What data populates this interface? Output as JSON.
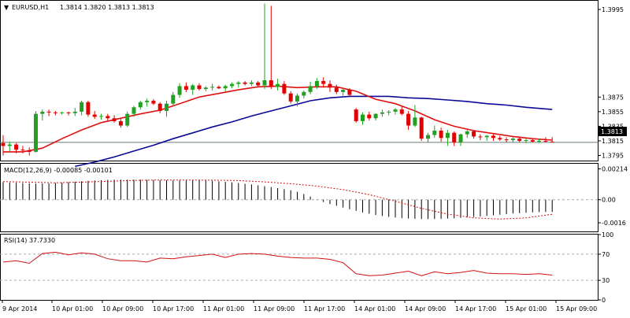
{
  "symbol_label": "EURUSD,H1",
  "ohlc_header": "1.3814 1.3820 1.3813 1.3813",
  "price_badge": "1.3813",
  "macd_label": "MACD(12,26,9) -0.00085 -0.00101",
  "rsi_label": "RSI(14) 37.7330",
  "colors": {
    "bull": "#22a022",
    "bear": "#e00000",
    "fast_ma": "#e01010",
    "slow_ma": "#0a0a96",
    "signal": "#d01010",
    "rsi": "#d01010",
    "grid_dash": "#aaaaaa",
    "current_price_line": "#6a7a70",
    "frame": "#000000"
  },
  "chart_data": [
    {
      "type": "candlestick",
      "symbol": "EURUSD",
      "timeframe": "H1",
      "y_ticks": [
        "1.3995",
        "1.3875",
        "1.3855",
        "1.3835",
        "1.3815",
        "1.3795"
      ],
      "ylim": [
        1.3788,
        1.4008
      ],
      "current_price": 1.3813,
      "x_tick_labels": [
        "9 Apr 2014",
        "10 Apr 01:00",
        "10 Apr 09:00",
        "10 Apr 17:00",
        "11 Apr 01:00",
        "11 Apr 09:00",
        "11 Apr 17:00",
        "14 Apr 01:00",
        "14 Apr 09:00",
        "14 Apr 17:00",
        "15 Apr 01:00",
        "15 Apr 09:00"
      ],
      "candles": [
        [
          1.3812,
          1.3823,
          1.3795,
          1.3808
        ],
        [
          1.3808,
          1.3814,
          1.3801,
          1.381
        ],
        [
          1.381,
          1.3812,
          1.3798,
          1.3803
        ],
        [
          1.3803,
          1.3808,
          1.3798,
          1.3802
        ],
        [
          1.3802,
          1.3806,
          1.3795,
          1.38
        ],
        [
          1.38,
          1.3856,
          1.3799,
          1.3852
        ],
        [
          1.3852,
          1.3858,
          1.3843,
          1.3855
        ],
        [
          1.3855,
          1.3858,
          1.3849,
          1.3854
        ],
        [
          1.3854,
          1.3856,
          1.385,
          1.3853
        ],
        [
          1.3853,
          1.3855,
          1.3851,
          1.3854
        ],
        [
          1.3854,
          1.3855,
          1.385,
          1.3853
        ],
        [
          1.3853,
          1.386,
          1.3849,
          1.3855
        ],
        [
          1.3855,
          1.387,
          1.385,
          1.3868
        ],
        [
          1.3868,
          1.387,
          1.3848,
          1.3851
        ],
        [
          1.3851,
          1.3856,
          1.3845,
          1.3848
        ],
        [
          1.3848,
          1.3852,
          1.3844,
          1.3849
        ],
        [
          1.3849,
          1.3852,
          1.3843,
          1.3846
        ],
        [
          1.3846,
          1.385,
          1.384,
          1.3842
        ],
        [
          1.3842,
          1.3845,
          1.3833,
          1.3836
        ],
        [
          1.3836,
          1.3855,
          1.3834,
          1.3852
        ],
        [
          1.3852,
          1.3863,
          1.3848,
          1.3861
        ],
        [
          1.3861,
          1.387,
          1.3858,
          1.3868
        ],
        [
          1.3868,
          1.3873,
          1.3862,
          1.387
        ],
        [
          1.387,
          1.3872,
          1.3864,
          1.3866
        ],
        [
          1.3866,
          1.3868,
          1.3853,
          1.3856
        ],
        [
          1.3856,
          1.387,
          1.3848,
          1.3866
        ],
        [
          1.3866,
          1.3882,
          1.3862,
          1.3878
        ],
        [
          1.3878,
          1.3894,
          1.3874,
          1.389
        ],
        [
          1.389,
          1.3895,
          1.3882,
          1.3885
        ],
        [
          1.3885,
          1.3893,
          1.3878,
          1.3891
        ],
        [
          1.3891,
          1.3894,
          1.3884,
          1.3886
        ],
        [
          1.3886,
          1.389,
          1.3883,
          1.3888
        ],
        [
          1.3888,
          1.3893,
          1.3884,
          1.3889
        ],
        [
          1.3889,
          1.3891,
          1.3886,
          1.3887
        ],
        [
          1.3887,
          1.3892,
          1.3883,
          1.389
        ],
        [
          1.389,
          1.3895,
          1.3887,
          1.3893
        ],
        [
          1.3893,
          1.3897,
          1.3888,
          1.3895
        ],
        [
          1.3895,
          1.3897,
          1.3891,
          1.3893
        ],
        [
          1.3893,
          1.3898,
          1.389,
          1.3895
        ],
        [
          1.3895,
          1.3897,
          1.3889,
          1.3891
        ],
        [
          1.3891,
          1.4003,
          1.3886,
          1.3898
        ],
        [
          1.3898,
          1.4,
          1.3886,
          1.3889
        ],
        [
          1.3889,
          1.39,
          1.3884,
          1.3893
        ],
        [
          1.3893,
          1.3897,
          1.3878,
          1.388
        ],
        [
          1.388,
          1.3883,
          1.3866,
          1.3869
        ],
        [
          1.3869,
          1.388,
          1.3862,
          1.3877
        ],
        [
          1.3877,
          1.3884,
          1.3873,
          1.3882
        ],
        [
          1.3882,
          1.3896,
          1.3879,
          1.389
        ],
        [
          1.389,
          1.3901,
          1.3886,
          1.3897
        ],
        [
          1.3897,
          1.3902,
          1.3888,
          1.3893
        ],
        [
          1.3893,
          1.3898,
          1.3882,
          1.3888
        ],
        [
          1.3888,
          1.3892,
          1.3879,
          1.3882
        ],
        [
          1.3882,
          1.3888,
          1.3877,
          1.3885
        ],
        [
          1.3885,
          1.3887,
          1.3876,
          1.3878
        ],
        [
          1.3858,
          1.386,
          1.384,
          1.3842
        ],
        [
          1.3842,
          1.3854,
          1.3837,
          1.3851
        ],
        [
          1.3851,
          1.3855,
          1.3843,
          1.3846
        ],
        [
          1.3846,
          1.3853,
          1.3843,
          1.3852
        ],
        [
          1.3852,
          1.3858,
          1.3848,
          1.3854
        ],
        [
          1.3854,
          1.3857,
          1.385,
          1.3855
        ],
        [
          1.3855,
          1.386,
          1.3851,
          1.3858
        ],
        [
          1.3858,
          1.3862,
          1.385,
          1.3852
        ],
        [
          1.3852,
          1.3856,
          1.383,
          1.3836
        ],
        [
          1.3836,
          1.3864,
          1.3834,
          1.3847
        ],
        [
          1.3847,
          1.3848,
          1.3815,
          1.3818
        ],
        [
          1.3818,
          1.3826,
          1.3813,
          1.3823
        ],
        [
          1.3823,
          1.3836,
          1.3819,
          1.3829
        ],
        [
          1.3829,
          1.3833,
          1.3814,
          1.3819
        ],
        [
          1.3819,
          1.383,
          1.3808,
          1.3826
        ],
        [
          1.3826,
          1.3828,
          1.3808,
          1.3813
        ],
        [
          1.3813,
          1.3825,
          1.3808,
          1.3824
        ],
        [
          1.3824,
          1.383,
          1.3819,
          1.3828
        ],
        [
          1.3828,
          1.383,
          1.3818,
          1.3821
        ],
        [
          1.3821,
          1.3824,
          1.3816,
          1.382
        ],
        [
          1.382,
          1.3823,
          1.3815,
          1.3822
        ],
        [
          1.3822,
          1.3824,
          1.3815,
          1.3819
        ],
        [
          1.3819,
          1.3822,
          1.3815,
          1.3817
        ],
        [
          1.3817,
          1.382,
          1.3813,
          1.3816
        ],
        [
          1.3816,
          1.382,
          1.3813,
          1.3818
        ],
        [
          1.3818,
          1.382,
          1.3813,
          1.3815
        ],
        [
          1.3815,
          1.3818,
          1.3812,
          1.3816
        ],
        [
          1.3816,
          1.3818,
          1.3813,
          1.3814
        ],
        [
          1.3814,
          1.3818,
          1.3812,
          1.3815
        ],
        [
          1.3815,
          1.382,
          1.3813,
          1.3814
        ],
        [
          1.3814,
          1.382,
          1.3813,
          1.3813
        ]
      ],
      "fast_ma": [
        [
          0,
          1.38
        ],
        [
          3,
          1.38
        ],
        [
          6,
          1.3805
        ],
        [
          9,
          1.3818
        ],
        [
          12,
          1.383
        ],
        [
          15,
          1.384
        ],
        [
          18,
          1.3846
        ],
        [
          21,
          1.3852
        ],
        [
          24,
          1.3857
        ],
        [
          27,
          1.3866
        ],
        [
          30,
          1.3875
        ],
        [
          33,
          1.388
        ],
        [
          36,
          1.3885
        ],
        [
          39,
          1.3889
        ],
        [
          42,
          1.389
        ],
        [
          45,
          1.3888
        ],
        [
          48,
          1.3889
        ],
        [
          51,
          1.3889
        ],
        [
          54,
          1.3883
        ],
        [
          57,
          1.3872
        ],
        [
          60,
          1.3866
        ],
        [
          63,
          1.3856
        ],
        [
          66,
          1.3844
        ],
        [
          69,
          1.3835
        ],
        [
          72,
          1.3829
        ],
        [
          75,
          1.3825
        ],
        [
          78,
          1.3821
        ],
        [
          81,
          1.3818
        ],
        [
          84,
          1.3816
        ]
      ],
      "slow_ma": [
        [
          11,
          1.378
        ],
        [
          14,
          1.3786
        ],
        [
          17,
          1.3793
        ],
        [
          20,
          1.3801
        ],
        [
          23,
          1.3809
        ],
        [
          26,
          1.3818
        ],
        [
          29,
          1.3826
        ],
        [
          32,
          1.3834
        ],
        [
          35,
          1.3841
        ],
        [
          38,
          1.3849
        ],
        [
          41,
          1.3856
        ],
        [
          44,
          1.3863
        ],
        [
          47,
          1.387
        ],
        [
          50,
          1.3874
        ],
        [
          53,
          1.3876
        ],
        [
          56,
          1.3876
        ],
        [
          59,
          1.3876
        ],
        [
          62,
          1.3874
        ],
        [
          65,
          1.3873
        ],
        [
          68,
          1.3871
        ],
        [
          71,
          1.3869
        ],
        [
          74,
          1.3866
        ],
        [
          77,
          1.3864
        ],
        [
          80,
          1.3861
        ],
        [
          84,
          1.3858
        ]
      ]
    },
    {
      "type": "histogram",
      "label": "MACD(12,26,9)",
      "y_ticks": [
        "0.00214",
        "0.00",
        "-0.0016"
      ],
      "ylim": [
        -0.0022,
        0.0025
      ],
      "histogram": [
        0.00122,
        0.0012,
        0.00118,
        0.00116,
        0.00114,
        0.00113,
        0.00113,
        0.00114,
        0.00116,
        0.00119,
        0.00122,
        0.00125,
        0.00128,
        0.00131,
        0.00134,
        0.00136,
        0.00138,
        0.00139,
        0.0014,
        0.0014,
        0.0014,
        0.00139,
        0.00138,
        0.00137,
        0.00136,
        0.00135,
        0.00134,
        0.00134,
        0.00134,
        0.00134,
        0.00134,
        0.00133,
        0.00131,
        0.00128,
        0.00125,
        0.00121,
        0.00116,
        0.00111,
        0.00106,
        0.001,
        0.00094,
        0.00088,
        0.00081,
        0.00074,
        0.00066,
        0.00055,
        0.0004,
        0.00022,
        2e-05,
        -0.00016,
        -0.0003,
        -0.00042,
        -0.00054,
        -0.00066,
        -0.00077,
        -0.00088,
        -0.00097,
        -0.00106,
        -0.00113,
        -0.00119,
        -0.00124,
        -0.00128,
        -0.00131,
        -0.00133,
        -0.00134,
        -0.00134,
        -0.00134,
        -0.00133,
        -0.00131,
        -0.00129,
        -0.00126,
        -0.00123,
        -0.0012,
        -0.00116,
        -0.00112,
        -0.00108,
        -0.00104,
        -0.001,
        -0.00096,
        -0.00093,
        -0.0009,
        -0.00088,
        -0.00086,
        -0.00085,
        -0.00085
      ],
      "signal": [
        [
          0,
          0.00126
        ],
        [
          4,
          0.00122
        ],
        [
          8,
          0.00118
        ],
        [
          12,
          0.00122
        ],
        [
          16,
          0.00128
        ],
        [
          20,
          0.00134
        ],
        [
          24,
          0.00137
        ],
        [
          28,
          0.00137
        ],
        [
          32,
          0.00136
        ],
        [
          36,
          0.00133
        ],
        [
          40,
          0.00124
        ],
        [
          44,
          0.00111
        ],
        [
          48,
          0.00095
        ],
        [
          52,
          0.0007
        ],
        [
          56,
          0.00035
        ],
        [
          60,
          -0.0001
        ],
        [
          64,
          -0.0006
        ],
        [
          68,
          -0.001
        ],
        [
          72,
          -0.00126
        ],
        [
          76,
          -0.00134
        ],
        [
          80,
          -0.00126
        ],
        [
          84,
          -0.00101
        ]
      ]
    },
    {
      "type": "line",
      "label": "RSI(14)",
      "y_ticks": [
        "100",
        "70",
        "30",
        "0"
      ],
      "ylim": [
        0,
        100
      ],
      "levels": [
        70,
        30
      ],
      "values": [
        [
          0,
          58
        ],
        [
          2,
          60
        ],
        [
          4,
          56
        ],
        [
          6,
          71
        ],
        [
          8,
          73
        ],
        [
          10,
          69
        ],
        [
          12,
          72
        ],
        [
          14,
          70
        ],
        [
          16,
          63
        ],
        [
          18,
          60
        ],
        [
          20,
          60
        ],
        [
          22,
          58
        ],
        [
          24,
          64
        ],
        [
          26,
          63
        ],
        [
          28,
          66
        ],
        [
          30,
          68
        ],
        [
          32,
          70
        ],
        [
          34,
          65
        ],
        [
          36,
          70
        ],
        [
          38,
          71
        ],
        [
          40,
          70
        ],
        [
          42,
          67
        ],
        [
          44,
          65
        ],
        [
          46,
          64
        ],
        [
          48,
          64
        ],
        [
          50,
          62
        ],
        [
          52,
          57
        ],
        [
          54,
          40
        ],
        [
          56,
          37
        ],
        [
          58,
          38
        ],
        [
          60,
          41
        ],
        [
          62,
          44
        ],
        [
          64,
          37
        ],
        [
          66,
          43
        ],
        [
          68,
          40
        ],
        [
          70,
          42
        ],
        [
          72,
          45
        ],
        [
          74,
          41
        ],
        [
          76,
          40
        ],
        [
          78,
          40
        ],
        [
          80,
          39
        ],
        [
          82,
          40
        ],
        [
          84,
          38
        ]
      ]
    }
  ]
}
